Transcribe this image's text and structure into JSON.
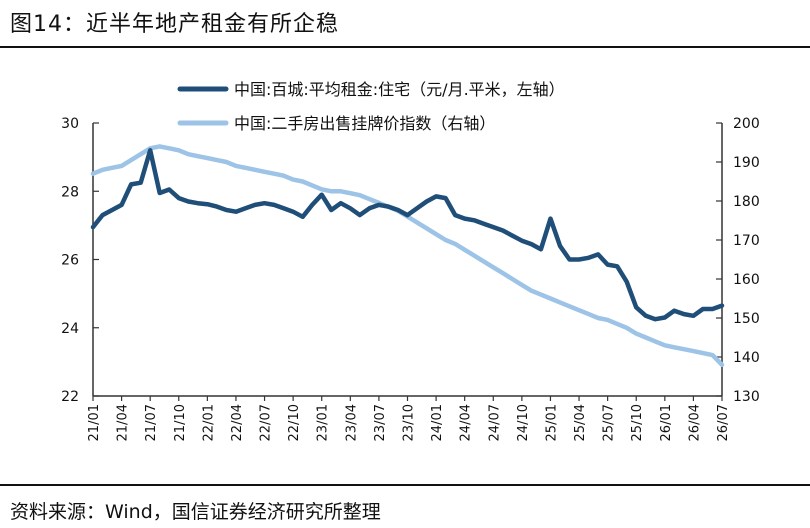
{
  "figure": {
    "title": "图14：近半年地产租金有所企稳",
    "source": "资料来源：Wind，国信证券经济研究所整理"
  },
  "chart_data": {
    "type": "line",
    "x_tick_labels": [
      "21/01",
      "21/04",
      "21/07",
      "21/10",
      "22/01",
      "22/04",
      "22/07",
      "22/10",
      "23/01",
      "23/04",
      "23/07",
      "23/10",
      "24/01",
      "24/04",
      "24/07",
      "24/10",
      "25/01",
      "25/04",
      "25/07",
      "25/10",
      "26/01",
      "26/04",
      "26/07"
    ],
    "y_left": {
      "range": [
        22,
        30
      ],
      "ticks": [
        22,
        24,
        26,
        28,
        30
      ]
    },
    "y_right": {
      "range": [
        130,
        200
      ],
      "ticks": [
        130,
        140,
        150,
        160,
        170,
        180,
        190,
        200
      ]
    },
    "legend_position": "top",
    "grid": false,
    "series": [
      {
        "name": "中国:百城:平均租金:住宅（元/月.平米，左轴）",
        "axis": "left",
        "color": "#1f4e79",
        "points": [
          [
            "21/01",
            26.95
          ],
          [
            "21/02",
            27.3
          ],
          [
            "21/03",
            27.45
          ],
          [
            "21/04",
            27.6
          ],
          [
            "21/05",
            28.2
          ],
          [
            "21/06",
            28.25
          ],
          [
            "21/07",
            29.2
          ],
          [
            "21/08",
            27.95
          ],
          [
            "21/09",
            28.05
          ],
          [
            "21/10",
            27.8
          ],
          [
            "21/11",
            27.7
          ],
          [
            "21/12",
            27.65
          ],
          [
            "22/01",
            27.62
          ],
          [
            "22/02",
            27.55
          ],
          [
            "22/03",
            27.45
          ],
          [
            "22/04",
            27.4
          ],
          [
            "22/05",
            27.5
          ],
          [
            "22/06",
            27.6
          ],
          [
            "22/07",
            27.65
          ],
          [
            "22/08",
            27.6
          ],
          [
            "22/09",
            27.5
          ],
          [
            "22/10",
            27.4
          ],
          [
            "22/11",
            27.25
          ],
          [
            "22/12",
            27.6
          ],
          [
            "23/01",
            27.9
          ],
          [
            "23/02",
            27.45
          ],
          [
            "23/03",
            27.65
          ],
          [
            "23/04",
            27.5
          ],
          [
            "23/05",
            27.3
          ],
          [
            "23/06",
            27.5
          ],
          [
            "23/07",
            27.6
          ],
          [
            "23/08",
            27.55
          ],
          [
            "23/09",
            27.45
          ],
          [
            "23/10",
            27.3
          ],
          [
            "23/11",
            27.5
          ],
          [
            "23/12",
            27.7
          ],
          [
            "24/01",
            27.85
          ],
          [
            "24/02",
            27.8
          ],
          [
            "24/03",
            27.3
          ],
          [
            "24/04",
            27.2
          ],
          [
            "24/05",
            27.15
          ],
          [
            "24/06",
            27.05
          ],
          [
            "24/07",
            26.95
          ],
          [
            "24/08",
            26.85
          ],
          [
            "24/09",
            26.7
          ],
          [
            "24/10",
            26.55
          ],
          [
            "24/11",
            26.45
          ],
          [
            "24/12",
            26.3
          ],
          [
            "25/01",
            27.2
          ],
          [
            "25/02",
            26.4
          ],
          [
            "25/03",
            26.0
          ],
          [
            "25/04",
            26.0
          ],
          [
            "25/05",
            26.05
          ],
          [
            "25/06",
            26.15
          ],
          [
            "25/07",
            25.85
          ],
          [
            "25/08",
            25.8
          ],
          [
            "25/09",
            25.35
          ],
          [
            "25/10",
            24.6
          ],
          [
            "25/11",
            24.35
          ],
          [
            "25/12",
            24.25
          ],
          [
            "26/01",
            24.3
          ],
          [
            "26/02",
            24.5
          ],
          [
            "26/03",
            24.4
          ],
          [
            "26/04",
            24.35
          ],
          [
            "26/05",
            24.55
          ],
          [
            "26/06",
            24.55
          ],
          [
            "26/07",
            24.65
          ]
        ]
      },
      {
        "name": "中国:二手房出售挂牌价指数（右轴）",
        "axis": "right",
        "color": "#9dc3e6",
        "points": [
          [
            "21/01",
            187
          ],
          [
            "21/02",
            188
          ],
          [
            "21/03",
            188.5
          ],
          [
            "21/04",
            189
          ],
          [
            "21/05",
            190.5
          ],
          [
            "21/06",
            192
          ],
          [
            "21/07",
            193.5
          ],
          [
            "21/08",
            194
          ],
          [
            "21/09",
            193.5
          ],
          [
            "21/10",
            193
          ],
          [
            "21/11",
            192
          ],
          [
            "21/12",
            191.5
          ],
          [
            "22/01",
            191
          ],
          [
            "22/02",
            190.5
          ],
          [
            "22/03",
            190
          ],
          [
            "22/04",
            189
          ],
          [
            "22/05",
            188.5
          ],
          [
            "22/06",
            188
          ],
          [
            "22/07",
            187.5
          ],
          [
            "22/08",
            187
          ],
          [
            "22/09",
            186.5
          ],
          [
            "22/10",
            185.5
          ],
          [
            "22/11",
            185
          ],
          [
            "22/12",
            184
          ],
          [
            "23/01",
            183
          ],
          [
            "23/02",
            182.5
          ],
          [
            "23/03",
            182.5
          ],
          [
            "23/04",
            182
          ],
          [
            "23/05",
            181.5
          ],
          [
            "23/06",
            180.5
          ],
          [
            "23/07",
            179.5
          ],
          [
            "23/08",
            178.5
          ],
          [
            "23/09",
            177.5
          ],
          [
            "23/10",
            176
          ],
          [
            "23/11",
            174.5
          ],
          [
            "23/12",
            173
          ],
          [
            "24/01",
            171.5
          ],
          [
            "24/02",
            170
          ],
          [
            "24/03",
            169
          ],
          [
            "24/04",
            167.5
          ],
          [
            "24/05",
            166
          ],
          [
            "24/06",
            164.5
          ],
          [
            "24/07",
            163
          ],
          [
            "24/08",
            161.5
          ],
          [
            "24/09",
            160
          ],
          [
            "24/10",
            158.5
          ],
          [
            "24/11",
            157
          ],
          [
            "24/12",
            156
          ],
          [
            "25/01",
            155
          ],
          [
            "25/02",
            154
          ],
          [
            "25/03",
            153
          ],
          [
            "25/04",
            152
          ],
          [
            "25/05",
            151
          ],
          [
            "25/06",
            150
          ],
          [
            "25/07",
            149.5
          ],
          [
            "25/08",
            148.5
          ],
          [
            "25/09",
            147.5
          ],
          [
            "25/10",
            146
          ],
          [
            "25/11",
            145
          ],
          [
            "25/12",
            144
          ],
          [
            "26/01",
            143
          ],
          [
            "26/02",
            142.5
          ],
          [
            "26/03",
            142
          ],
          [
            "26/04",
            141.5
          ],
          [
            "26/05",
            141
          ],
          [
            "26/06",
            140.5
          ],
          [
            "26/07",
            138
          ]
        ]
      }
    ]
  }
}
